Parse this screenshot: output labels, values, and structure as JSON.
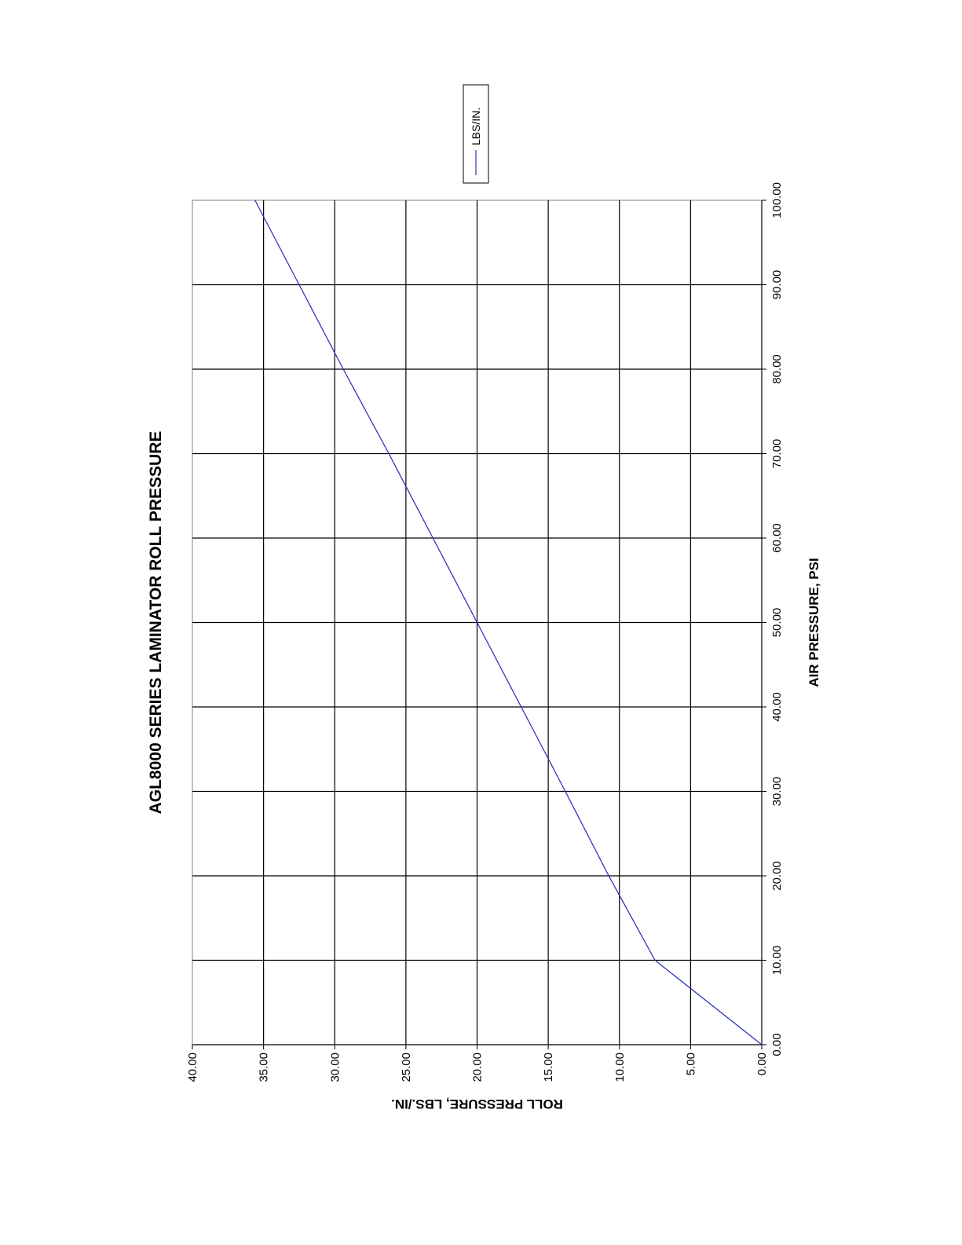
{
  "chart_data": {
    "type": "line",
    "title": "AGL8000 SERIES LAMINATOR ROLL PRESSURE",
    "xlabel": "AIR PRESSURE, PSI",
    "ylabel": "ROLL PRESSURE, LBS./IN.",
    "xlim": [
      0,
      100
    ],
    "ylim": [
      0,
      40
    ],
    "x_ticks": [
      "0.00",
      "10.00",
      "20.00",
      "30.00",
      "40.00",
      "50.00",
      "60.00",
      "70.00",
      "80.00",
      "90.00",
      "100.00"
    ],
    "y_ticks": [
      "0.00",
      "5.00",
      "10.00",
      "15.00",
      "20.00",
      "25.00",
      "30.00",
      "35.00",
      "40.00"
    ],
    "grid": true,
    "legend_position": "top-right",
    "orientation": "rotated 90 degrees counter-clockwise",
    "series": [
      {
        "name": "LBS/IN.",
        "color": "#2b35b8",
        "x": [
          0,
          10,
          20,
          30,
          40,
          50,
          60,
          70,
          80,
          90,
          100
        ],
        "y": [
          0,
          7.5,
          10.75,
          13.8,
          16.9,
          20,
          23.1,
          26.2,
          29.4,
          32.5,
          35.6
        ]
      }
    ]
  }
}
